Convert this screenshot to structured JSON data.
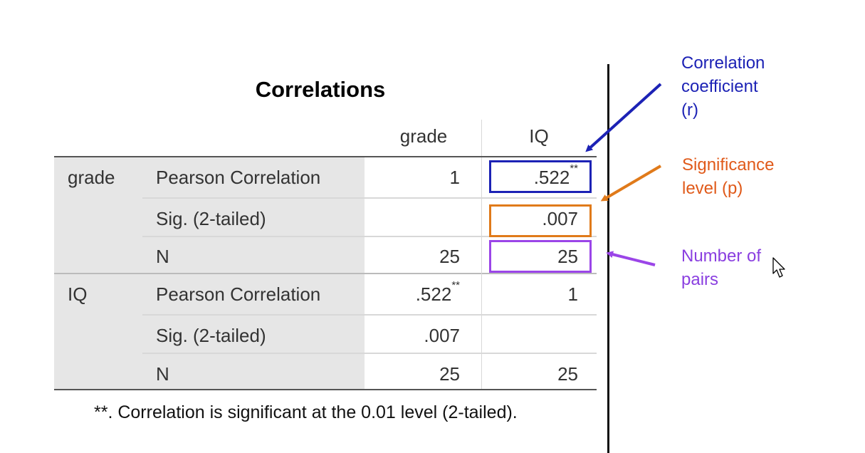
{
  "table": {
    "title": "Correlations",
    "col_headers": [
      "grade",
      "IQ"
    ],
    "rows": [
      {
        "group": "grade",
        "stat": "Pearson Correlation",
        "grade": "1",
        "iq": ".522",
        "iq_sup": "**",
        "grade_sup": ""
      },
      {
        "group": "",
        "stat": "Sig. (2-tailed)",
        "grade": "",
        "iq": ".007",
        "iq_sup": "",
        "grade_sup": ""
      },
      {
        "group": "",
        "stat": "N",
        "grade": "25",
        "iq": "25",
        "iq_sup": "",
        "grade_sup": ""
      },
      {
        "group": "IQ",
        "stat": "Pearson Correlation",
        "grade": ".522",
        "iq": "1",
        "iq_sup": "",
        "grade_sup": "**"
      },
      {
        "group": "",
        "stat": "Sig. (2-tailed)",
        "grade": ".007",
        "iq": "",
        "iq_sup": "",
        "grade_sup": ""
      },
      {
        "group": "",
        "stat": "N",
        "grade": "25",
        "iq": "25",
        "iq_sup": "",
        "grade_sup": ""
      }
    ],
    "footnote": "**. Correlation is significant at the 0.01 level (2-tailed).",
    "footnote_line1": "**. Correlation is significant at the 0.01 level (2-",
    "footnote_line2": "tailed)."
  },
  "annotations": {
    "r": {
      "lines": [
        "Correlation",
        "coefficient",
        "(r)"
      ],
      "color": "#1c22b5"
    },
    "p": {
      "lines": [
        "Significance",
        "level (p)"
      ],
      "color": "#e05a1a"
    },
    "n": {
      "lines": [
        "Number of",
        "pairs"
      ],
      "color": "#8a3fe0"
    }
  },
  "colors": {
    "shade": "#e6e6e6",
    "r_box": "#1c22b5",
    "p_box": "#e07a1a",
    "n_box": "#9b45e8",
    "divider": "#111111"
  },
  "icons": [
    "mouse-pointer-icon",
    "arrow-icon"
  ]
}
